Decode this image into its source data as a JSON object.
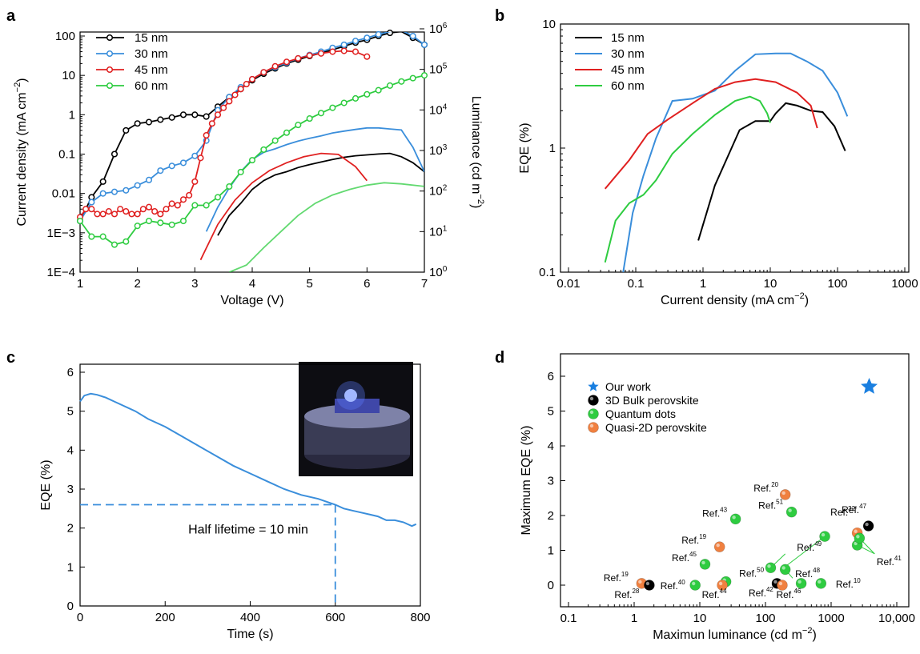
{
  "chart_data": [
    {
      "panel": "a",
      "type": "line",
      "xlabel": "Voltage (V)",
      "ylabel": "Current density (mA cm−2)",
      "y2label": "Luminance (cd m−2)",
      "xlim": [
        1,
        7
      ],
      "ylim": [
        0.0001,
        200
      ],
      "y2lim": [
        1,
        1000000
      ],
      "yscale": "log",
      "y2scale": "log",
      "x_ticks": [
        1,
        2,
        3,
        4,
        5,
        6,
        7
      ],
      "y_ticks": [
        0.0001,
        0.001,
        0.01,
        0.1,
        1,
        10,
        100
      ],
      "y_tick_labels": [
        "1E−4",
        "1E−3",
        "0.01",
        "0.1",
        "1",
        "10",
        "100"
      ],
      "y2_ticks": [
        1,
        10,
        100,
        1000,
        10000,
        100000,
        1000000
      ],
      "y2_tick_labels": [
        "10",
        "10",
        "10",
        "10",
        "10",
        "10",
        "10"
      ],
      "y2_tick_exps": [
        "0",
        "1",
        "2",
        "3",
        "4",
        "5",
        "6"
      ],
      "legend": "top-left",
      "series": [
        {
          "name": "15 nm",
          "color": "#000000",
          "current_x": [
            1.0,
            1.2,
            1.4,
            1.6,
            1.8,
            2.0,
            2.2,
            2.4,
            2.6,
            2.8,
            3.0,
            3.2,
            3.4,
            3.6,
            3.8,
            4.0,
            4.2,
            4.4,
            4.6,
            4.8,
            5.0,
            5.2,
            5.4,
            5.6,
            5.8,
            6.0,
            6.2,
            6.4,
            6.6,
            6.8,
            7.0
          ],
          "current_y": [
            0.002,
            0.008,
            0.02,
            0.1,
            0.4,
            0.6,
            0.65,
            0.75,
            0.85,
            1.0,
            1.0,
            0.9,
            1.6,
            2.8,
            4.5,
            7.5,
            11,
            15,
            20,
            25,
            31,
            37,
            45,
            55,
            68,
            80,
            100,
            120,
            130,
            90,
            60
          ],
          "lum_x": [
            3.4,
            3.6,
            3.8,
            4.0,
            4.2,
            4.4,
            4.6,
            4.8,
            5.0,
            5.2,
            5.4,
            5.6,
            5.8,
            6.0,
            6.2,
            6.4,
            6.6,
            6.8,
            7.0
          ],
          "lum_y": [
            8,
            25,
            50,
            110,
            180,
            250,
            300,
            380,
            450,
            520,
            600,
            680,
            740,
            780,
            820,
            850,
            700,
            500,
            300
          ]
        },
        {
          "name": "30 nm",
          "color": "#3a8edb",
          "current_x": [
            1.0,
            1.2,
            1.4,
            1.6,
            1.8,
            2.0,
            2.2,
            2.4,
            2.6,
            2.8,
            3.0,
            3.2,
            3.4,
            3.6,
            3.8,
            4.0,
            4.2,
            4.4,
            4.6,
            4.8,
            5.0,
            5.2,
            5.4,
            5.6,
            5.8,
            6.0,
            6.2,
            6.4,
            6.6,
            6.8,
            7.0
          ],
          "current_y": [
            0.002,
            0.006,
            0.01,
            0.011,
            0.012,
            0.016,
            0.022,
            0.038,
            0.05,
            0.06,
            0.09,
            0.22,
            1.3,
            2.8,
            5,
            8,
            12,
            16,
            21,
            27,
            33,
            40,
            50,
            60,
            75,
            90,
            110,
            130,
            140,
            100,
            60
          ],
          "lum_x": [
            3.2,
            3.4,
            3.6,
            3.8,
            4.0,
            4.2,
            4.4,
            4.6,
            4.8,
            5.0,
            5.2,
            5.4,
            5.6,
            5.8,
            6.0,
            6.2,
            6.4,
            6.6,
            6.8,
            7.0
          ],
          "lum_y": [
            10,
            40,
            120,
            300,
            600,
            900,
            1100,
            1400,
            1700,
            2000,
            2300,
            2700,
            3000,
            3300,
            3600,
            3600,
            3400,
            3200,
            1200,
            300
          ]
        },
        {
          "name": "45 nm",
          "color": "#e02020",
          "current_x": [
            1.0,
            1.1,
            1.2,
            1.3,
            1.4,
            1.5,
            1.6,
            1.7,
            1.8,
            1.9,
            2.0,
            2.1,
            2.2,
            2.3,
            2.4,
            2.5,
            2.6,
            2.7,
            2.8,
            2.9,
            3.0,
            3.1,
            3.2,
            3.3,
            3.4,
            3.5,
            3.6,
            3.7,
            3.8,
            3.9,
            4.0,
            4.2,
            4.4,
            4.6,
            4.8,
            5.0,
            5.2,
            5.4,
            5.6,
            5.8,
            6.0
          ],
          "current_y": [
            0.0025,
            0.004,
            0.004,
            0.003,
            0.003,
            0.0035,
            0.003,
            0.004,
            0.0035,
            0.003,
            0.003,
            0.004,
            0.0045,
            0.0035,
            0.003,
            0.004,
            0.0055,
            0.005,
            0.007,
            0.009,
            0.02,
            0.08,
            0.3,
            0.6,
            1.0,
            1.5,
            2.2,
            3.2,
            4.5,
            6,
            8,
            12,
            17,
            22,
            27,
            32,
            36,
            40,
            42,
            40,
            30
          ],
          "lum_x": [
            3.1,
            3.4,
            3.7,
            4.0,
            4.3,
            4.6,
            4.9,
            5.2,
            5.5,
            5.8,
            6.0
          ],
          "lum_y": [
            2,
            15,
            60,
            160,
            320,
            500,
            700,
            850,
            800,
            400,
            180
          ]
        },
        {
          "name": "60 nm",
          "color": "#2ecc40",
          "current_x": [
            1.0,
            1.2,
            1.4,
            1.6,
            1.8,
            2.0,
            2.2,
            2.4,
            2.6,
            2.8,
            3.0,
            3.2,
            3.4,
            3.6,
            3.8,
            4.0,
            4.2,
            4.4,
            4.6,
            4.8,
            5.0,
            5.2,
            5.4,
            5.6,
            5.8,
            6.0,
            6.2,
            6.4,
            6.6,
            6.8,
            7.0
          ],
          "current_y": [
            0.002,
            0.0008,
            0.0008,
            0.0005,
            0.0006,
            0.0015,
            0.002,
            0.0018,
            0.0016,
            0.002,
            0.005,
            0.005,
            0.008,
            0.015,
            0.035,
            0.07,
            0.13,
            0.22,
            0.35,
            0.55,
            0.8,
            1.1,
            1.5,
            2.0,
            2.6,
            3.3,
            4.2,
            5.5,
            7,
            8.5,
            10
          ],
          "lum_x": [
            3.6,
            3.9,
            4.2,
            4.5,
            4.8,
            5.1,
            5.4,
            5.7,
            6.0,
            6.3,
            6.6,
            7.0
          ],
          "lum_y": [
            1,
            1.5,
            4,
            10,
            25,
            50,
            80,
            110,
            140,
            160,
            150,
            130
          ]
        }
      ]
    },
    {
      "panel": "b",
      "type": "line",
      "xlabel": "Current density (mA cm−2)",
      "ylabel": "EQE (%)",
      "xscale": "log",
      "yscale": "log",
      "xlim": [
        0.01,
        1000
      ],
      "ylim": [
        0.1,
        10
      ],
      "x_ticks": [
        0.01,
        0.1,
        1,
        10,
        100,
        1000
      ],
      "x_tick_labels": [
        "0.01",
        "0.1",
        "1",
        "10",
        "100",
        "1000"
      ],
      "y_ticks": [
        0.1,
        1,
        10
      ],
      "y_tick_labels": [
        "0.1",
        "1",
        "10"
      ],
      "legend": "top-left",
      "series": [
        {
          "name": "15 nm",
          "color": "#000000",
          "x": [
            0.85,
            1.5,
            3.5,
            6,
            10,
            12,
            17,
            25,
            40,
            60,
            90,
            130
          ],
          "y": [
            0.18,
            0.5,
            1.4,
            1.65,
            1.65,
            1.9,
            2.3,
            2.2,
            2.0,
            1.95,
            1.5,
            0.95
          ]
        },
        {
          "name": "30 nm",
          "color": "#3a8edb",
          "x": [
            0.065,
            0.09,
            0.13,
            0.2,
            0.35,
            0.7,
            1.5,
            3,
            6,
            12,
            20,
            35,
            60,
            100,
            140
          ],
          "y": [
            0.1,
            0.3,
            0.6,
            1.2,
            2.4,
            2.5,
            2.9,
            4.2,
            5.7,
            5.8,
            5.8,
            5.0,
            4.2,
            2.8,
            1.8
          ]
        },
        {
          "name": "45 nm",
          "color": "#e02020",
          "x": [
            0.035,
            0.08,
            0.15,
            0.3,
            0.7,
            1.5,
            3,
            6,
            12,
            25,
            40,
            50
          ],
          "y": [
            0.47,
            0.8,
            1.3,
            1.7,
            2.3,
            3.0,
            3.4,
            3.6,
            3.4,
            2.8,
            2.2,
            1.45
          ]
        },
        {
          "name": "60 nm",
          "color": "#2ecc40",
          "x": [
            0.035,
            0.05,
            0.08,
            0.13,
            0.2,
            0.35,
            0.7,
            1.5,
            3,
            5,
            7,
            9,
            10
          ],
          "y": [
            0.12,
            0.26,
            0.36,
            0.42,
            0.55,
            0.9,
            1.3,
            1.85,
            2.4,
            2.6,
            2.4,
            1.9,
            1.6
          ]
        }
      ]
    },
    {
      "panel": "c",
      "type": "line",
      "xlabel": "Time (s)",
      "ylabel": "EQE (%)",
      "xlim": [
        0,
        800
      ],
      "ylim": [
        0,
        6
      ],
      "x_ticks": [
        0,
        200,
        400,
        600,
        800
      ],
      "y_ticks": [
        0,
        1,
        2,
        3,
        4,
        5,
        6
      ],
      "annotation": "Half lifetime = 10 min",
      "half_lifetime_point": {
        "x": 600,
        "y": 2.6
      },
      "series": [
        {
          "color": "#3a8edb",
          "x": [
            0,
            10,
            25,
            40,
            60,
            80,
            100,
            130,
            160,
            200,
            240,
            280,
            320,
            360,
            400,
            440,
            480,
            520,
            560,
            600,
            620,
            640,
            660,
            680,
            700,
            720,
            740,
            760,
            780,
            790
          ],
          "y": [
            5.25,
            5.4,
            5.45,
            5.42,
            5.35,
            5.25,
            5.15,
            5.0,
            4.8,
            4.6,
            4.35,
            4.1,
            3.85,
            3.6,
            3.4,
            3.2,
            3.0,
            2.85,
            2.75,
            2.6,
            2.5,
            2.45,
            2.4,
            2.35,
            2.3,
            2.2,
            2.2,
            2.15,
            2.05,
            2.1
          ]
        }
      ]
    },
    {
      "panel": "d",
      "type": "scatter",
      "xlabel": "Maximun luminance (cd m−2)",
      "ylabel": "Maximum EQE (%)",
      "xscale": "log",
      "xlim": [
        0.1,
        10000
      ],
      "ylim": [
        0,
        6
      ],
      "x_ticks": [
        0.1,
        1,
        10,
        100,
        1000,
        10000
      ],
      "x_tick_labels": [
        "0.1",
        "1",
        "10",
        "100",
        "1000",
        "10,000"
      ],
      "y_ticks": [
        0,
        1,
        2,
        3,
        4,
        5,
        6
      ],
      "legend": "top-left",
      "legend_entries": [
        {
          "label": "Our work",
          "marker": "star",
          "color": "#1a7fe0"
        },
        {
          "label": "3D Bulk perovskite",
          "marker": "circle",
          "color": "#000000"
        },
        {
          "label": "Quantum dots",
          "marker": "circle",
          "color": "#2ecc40"
        },
        {
          "label": "Quasi-2D perovskite",
          "marker": "circle",
          "color": "#f08040"
        }
      ],
      "points": [
        {
          "group": "Our work",
          "x": 3800,
          "y": 5.7
        },
        {
          "group": "Quasi-2D perovskite",
          "x": 200,
          "y": 2.6,
          "label": "Ref.",
          "sup": "20"
        },
        {
          "group": "Quantum dots",
          "x": 250,
          "y": 2.1,
          "label": "Ref.",
          "sup": "51"
        },
        {
          "group": "Quantum dots",
          "x": 35,
          "y": 1.9,
          "label": "Ref.",
          "sup": "43"
        },
        {
          "group": "Quasi-2D perovskite",
          "x": 2500,
          "y": 1.5,
          "label": "Ref.",
          "sup": "32"
        },
        {
          "group": "3D Bulk perovskite",
          "x": 3700,
          "y": 1.7,
          "label": "Ref.",
          "sup": "47"
        },
        {
          "group": "Quantum dots",
          "x": 800,
          "y": 1.4
        },
        {
          "group": "Quantum dots",
          "x": 2500,
          "y": 1.15
        },
        {
          "group": "Quantum dots",
          "x": 2700,
          "y": 1.35
        },
        {
          "group": "Quasi-2D perovskite",
          "x": 20,
          "y": 1.1,
          "label": "Ref.",
          "sup": "19"
        },
        {
          "group": "Quantum dots",
          "x": 120,
          "y": 0.5
        },
        {
          "group": "Quantum dots",
          "x": 200,
          "y": 0.45
        },
        {
          "group": "Quantum dots",
          "x": 12,
          "y": 0.6,
          "label": "Ref.",
          "sup": "45"
        },
        {
          "group": "Quasi-2D perovskite",
          "x": 1.3,
          "y": 0.05,
          "label": "Ref.",
          "sup": "19"
        },
        {
          "group": "3D Bulk perovskite",
          "x": 1.7,
          "y": 0.0,
          "label": "Ref.",
          "sup": "28"
        },
        {
          "group": "Quantum dots",
          "x": 8.5,
          "y": 0.0,
          "label": "Ref.",
          "sup": "40"
        },
        {
          "group": "Quantum dots",
          "x": 25,
          "y": 0.1
        },
        {
          "group": "Quasi-2D perovskite",
          "x": 22,
          "y": 0.0,
          "label": "Ref.",
          "sup": "44"
        },
        {
          "group": "3D Bulk perovskite",
          "x": 150,
          "y": 0.05,
          "label": "Ref.",
          "sup": "42"
        },
        {
          "group": "Quasi-2D perovskite",
          "x": 180,
          "y": 0.0,
          "label": "Ref.",
          "sup": "46"
        },
        {
          "group": "Quantum dots",
          "x": 350,
          "y": 0.05
        },
        {
          "group": "Quantum dots",
          "x": 700,
          "y": 0.05,
          "label": "Ref.",
          "sup": "10"
        }
      ],
      "callouts": [
        {
          "label": "Ref.",
          "sup": "49",
          "group": "Quantum dots"
        },
        {
          "label": "Ref.",
          "sup": "48",
          "group": "Quantum dots"
        },
        {
          "label": "Ref.",
          "sup": "41",
          "group": "Quantum dots"
        },
        {
          "label": "Ref.",
          "sup": "50",
          "group": "Quantum dots"
        }
      ]
    }
  ]
}
